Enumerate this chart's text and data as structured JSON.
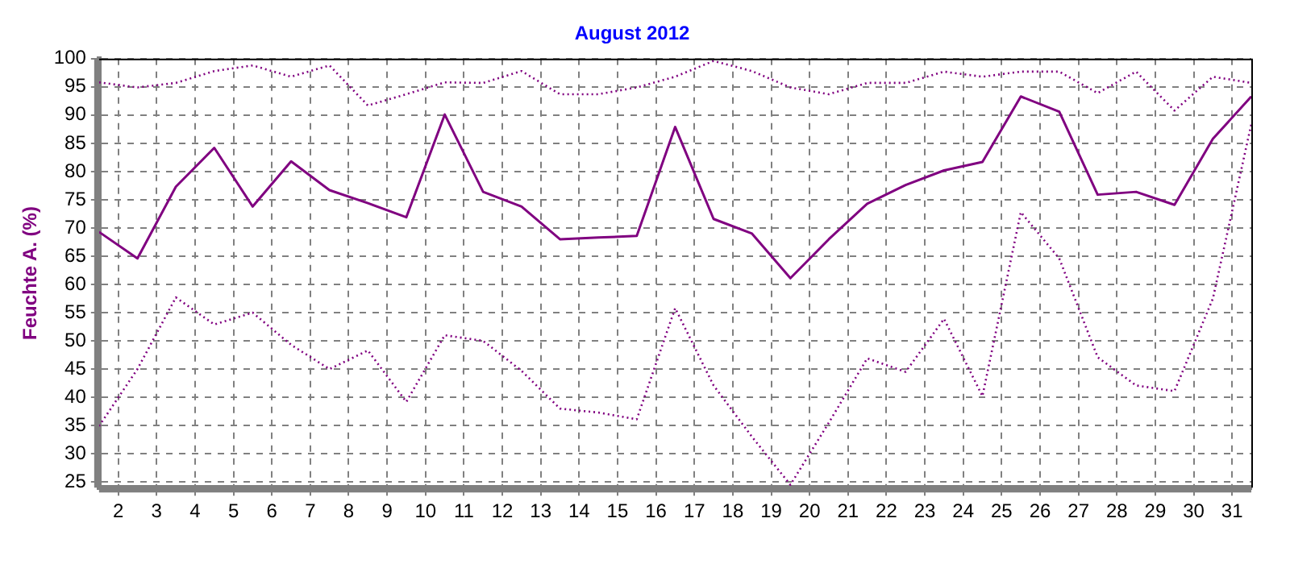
{
  "chart_data": {
    "type": "line",
    "title": "August 2012",
    "ylabel": "Feuchte A. (%)",
    "x": [
      1.5,
      2.5,
      3.5,
      4.5,
      5.5,
      6.5,
      7.5,
      8.5,
      9.5,
      10.5,
      11.5,
      12.5,
      13.5,
      14.5,
      15.5,
      16.5,
      17.5,
      18.5,
      19.5,
      20.5,
      21.5,
      22.5,
      23.5,
      24.5,
      25.5,
      26.5,
      27.5,
      28.5,
      29.5,
      30.5,
      31.5
    ],
    "xlim": [
      1.5,
      31.5
    ],
    "xticks": [
      2,
      3,
      4,
      5,
      6,
      7,
      8,
      9,
      10,
      11,
      12,
      13,
      14,
      15,
      16,
      17,
      18,
      19,
      20,
      21,
      22,
      23,
      24,
      25,
      26,
      27,
      28,
      29,
      30,
      31
    ],
    "ylim": [
      24,
      100
    ],
    "yticks": [
      25,
      30,
      35,
      40,
      45,
      50,
      55,
      60,
      65,
      70,
      75,
      80,
      85,
      90,
      95,
      100
    ],
    "grid": true,
    "legend": false,
    "marker": "none",
    "series": [
      {
        "color": "#800080",
        "line_style": "dotted",
        "values": [
          95.8,
          94.9,
          95.7,
          97.8,
          98.8,
          96.8,
          98.8,
          91.7,
          93.7,
          95.8,
          95.7,
          97.8,
          93.7,
          93.7,
          94.9,
          96.8,
          99.6,
          97.8,
          94.9,
          93.7,
          95.7,
          95.7,
          97.7,
          96.8,
          97.7,
          97.7,
          93.9,
          97.7,
          90.8,
          96.8,
          95.7
        ]
      },
      {
        "color": "#800080",
        "line_style": "solid",
        "values": [
          69.3,
          64.6,
          77.3,
          84.2,
          73.8,
          81.8,
          76.7,
          74.4,
          71.9,
          90.1,
          76.4,
          73.8,
          68.0,
          68.3,
          68.6,
          87.9,
          71.6,
          69.0,
          61.1,
          68.0,
          74.3,
          77.6,
          80.2,
          81.7,
          93.3,
          90.6,
          75.9,
          76.4,
          74.1,
          85.8,
          93.3
        ]
      },
      {
        "color": "#800080",
        "line_style": "dotted",
        "values": [
          34.9,
          45.0,
          57.7,
          52.9,
          55.0,
          49.3,
          45.0,
          48.3,
          39.2,
          51.0,
          50.0,
          44.7,
          38.0,
          37.3,
          36.1,
          55.8,
          42.1,
          33.0,
          24.5,
          35.5,
          46.9,
          44.5,
          53.9,
          40.2,
          72.8,
          64.6,
          47.1,
          42.1,
          41.1,
          57.5,
          88.4
        ]
      }
    ]
  }
}
